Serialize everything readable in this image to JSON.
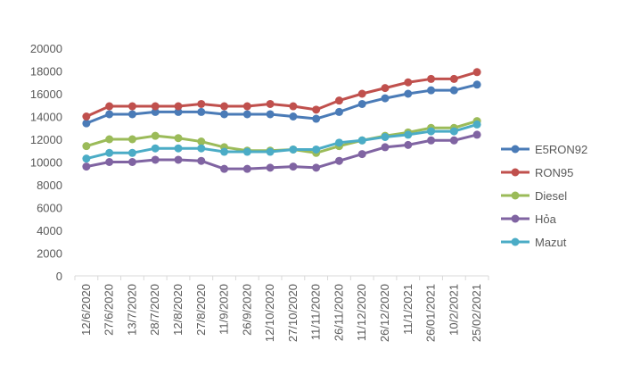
{
  "chart_data": {
    "type": "line",
    "title": "",
    "xlabel": "",
    "ylabel": "",
    "ylim": [
      0,
      20000
    ],
    "yticks": [
      0,
      2000,
      4000,
      6000,
      8000,
      10000,
      12000,
      14000,
      16000,
      18000,
      20000
    ],
    "grid": false,
    "legend_position": "right",
    "categories": [
      "12/6/2020",
      "27/6/2020",
      "13/7/2020",
      "28/7/2020",
      "12/8/2020",
      "27/8/2020",
      "11/9/2020",
      "26/9/2020",
      "12/10/2020",
      "27/10/2020",
      "11/11/2020",
      "26/11/2020",
      "11/12/2020",
      "26/12/2020",
      "11/1/2021",
      "26/01/2021",
      "10/2/2021",
      "25/02/2021"
    ],
    "series": [
      {
        "name": "E5RON92",
        "color": "#4a7bb7",
        "values": [
          13400,
          14200,
          14200,
          14400,
          14400,
          14400,
          14200,
          14200,
          14200,
          14000,
          13800,
          14400,
          15100,
          15600,
          16000,
          16300,
          16300,
          16800
        ]
      },
      {
        "name": "RON95",
        "color": "#c0504d",
        "values": [
          14000,
          14900,
          14900,
          14900,
          14900,
          15100,
          14900,
          14900,
          15100,
          14900,
          14600,
          15400,
          16000,
          16500,
          17000,
          17300,
          17300,
          17900
        ]
      },
      {
        "name": "Diesel",
        "color": "#9bbb59",
        "values": [
          11400,
          12000,
          12000,
          12300,
          12100,
          11800,
          11300,
          11000,
          11000,
          11100,
          10800,
          11400,
          11900,
          12300,
          12600,
          13000,
          13000,
          13600
        ]
      },
      {
        "name": "Hỏa",
        "color": "#8064a2",
        "values": [
          9600,
          10000,
          10000,
          10200,
          10200,
          10100,
          9400,
          9400,
          9500,
          9600,
          9500,
          10100,
          10700,
          11300,
          11500,
          11900,
          11900,
          12400
        ]
      },
      {
        "name": "Mazut",
        "color": "#4bacc6",
        "values": [
          10300,
          10800,
          10800,
          11200,
          11200,
          11200,
          10900,
          10900,
          10900,
          11100,
          11100,
          11700,
          11900,
          12200,
          12400,
          12700,
          12700,
          13300
        ]
      }
    ]
  }
}
